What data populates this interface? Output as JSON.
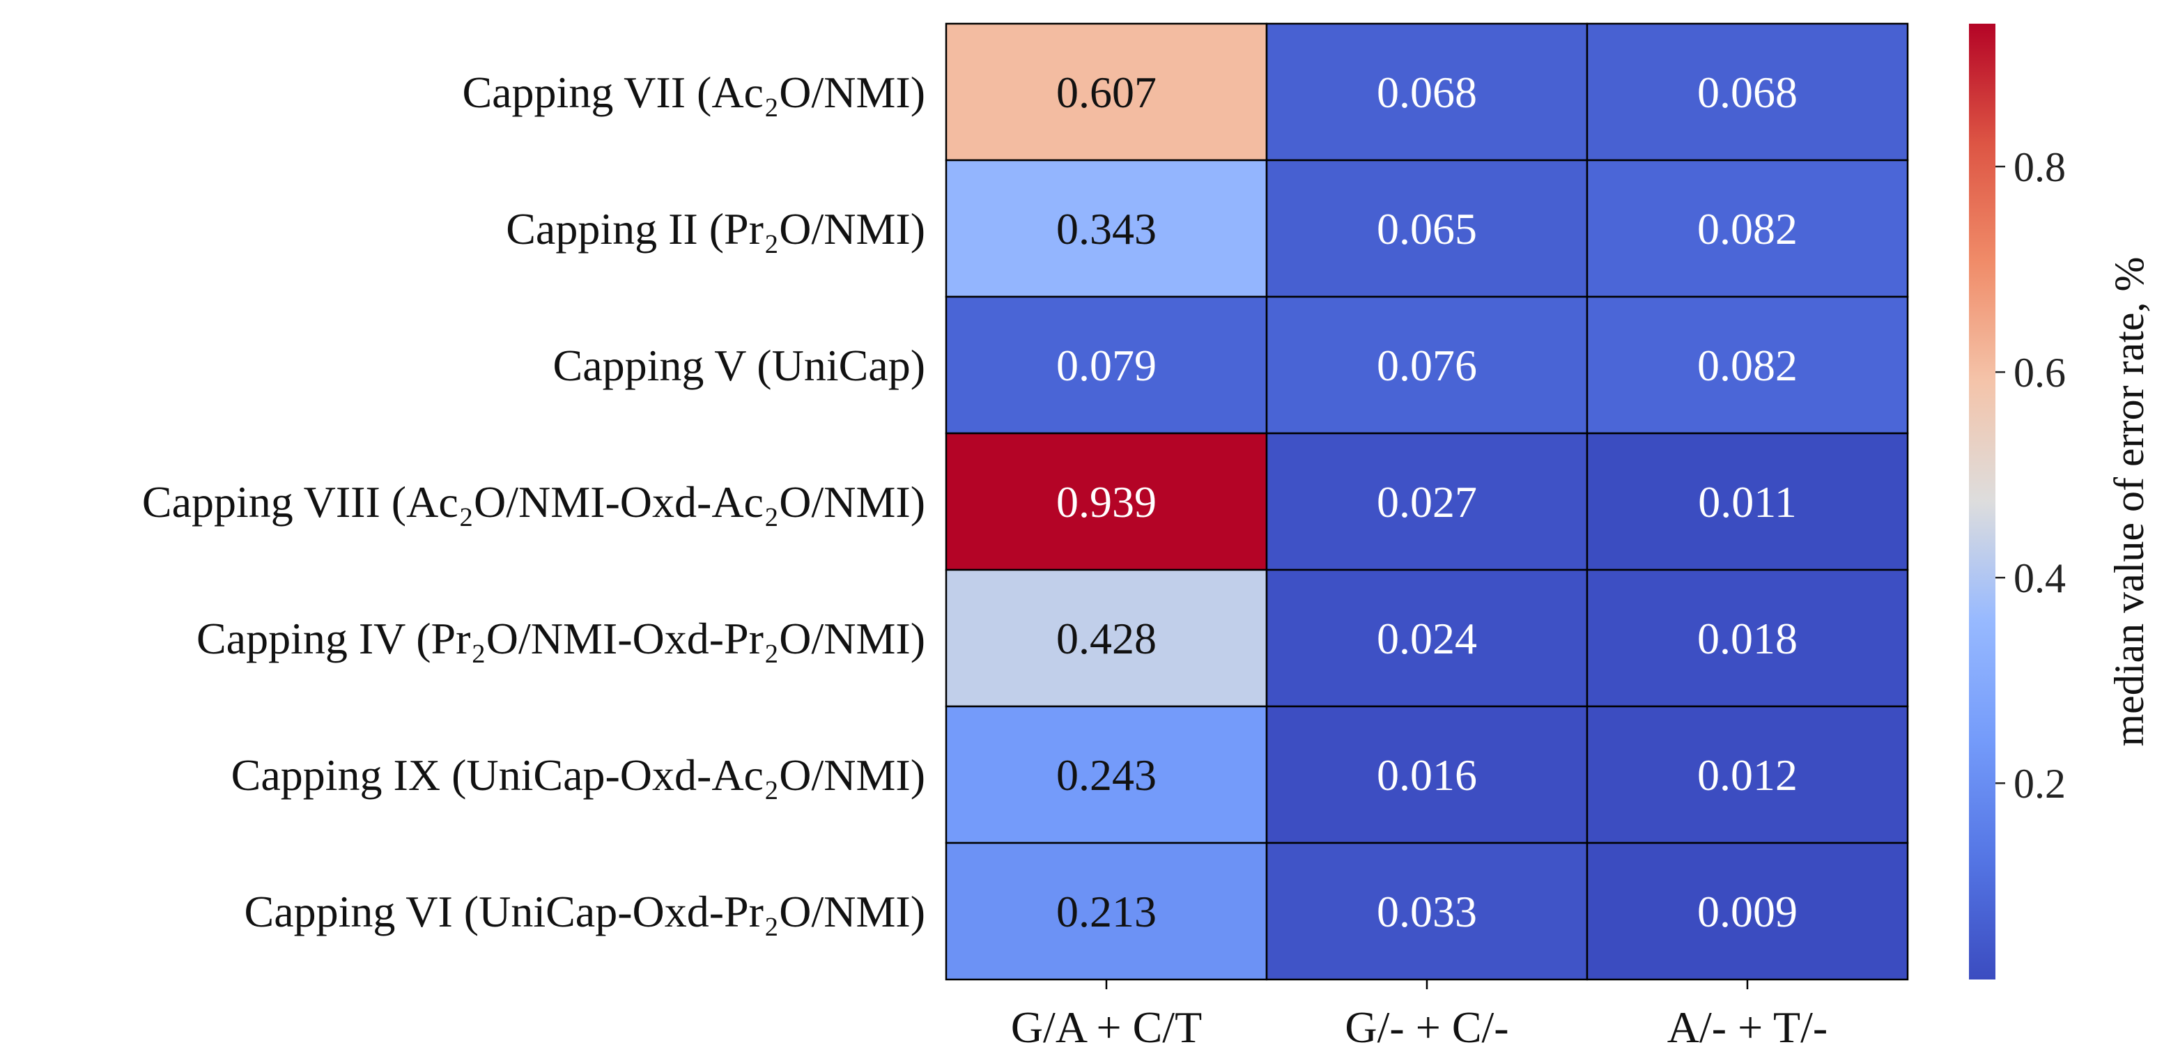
{
  "chart_data": {
    "type": "heatmap",
    "rows": [
      "Capping VII (Ac₂O/NMI)",
      "Capping II (Pr₂O/NMI)",
      "Capping V (UniCap)",
      "Capping VIII (Ac₂O/NMI-Oxd-Ac₂O/NMI)",
      "Capping IV (Pr₂O/NMI-Oxd-Pr₂O/NMI)",
      "Capping IX (UniCap-Oxd-Ac₂O/NMI)",
      "Capping VI (UniCap-Oxd-Pr₂O/NMI)"
    ],
    "columns": [
      "G/A + C/T",
      "G/- + C/-",
      "A/- + T/-"
    ],
    "values": [
      [
        0.607,
        0.068,
        0.068
      ],
      [
        0.343,
        0.065,
        0.082
      ],
      [
        0.079,
        0.076,
        0.082
      ],
      [
        0.939,
        0.027,
        0.011
      ],
      [
        0.428,
        0.024,
        0.018
      ],
      [
        0.243,
        0.016,
        0.012
      ],
      [
        0.213,
        0.033,
        0.009
      ]
    ],
    "value_labels": [
      [
        "0.607",
        "0.068",
        "0.068"
      ],
      [
        "0.343",
        "0.065",
        "0.082"
      ],
      [
        "0.079",
        "0.076",
        "0.082"
      ],
      [
        "0.939",
        "0.027",
        "0.011"
      ],
      [
        "0.428",
        "0.024",
        "0.018"
      ],
      [
        "0.243",
        "0.016",
        "0.012"
      ],
      [
        "0.213",
        "0.033",
        "0.009"
      ]
    ],
    "colormap": "coolwarm",
    "vmin": 0.009,
    "vmax": 0.939,
    "colorbar": {
      "label": "median value of error rate, %",
      "ticks": [
        0.2,
        0.4,
        0.6,
        0.8
      ],
      "tick_labels": [
        "0.2",
        "0.4",
        "0.6",
        "0.8"
      ]
    }
  }
}
